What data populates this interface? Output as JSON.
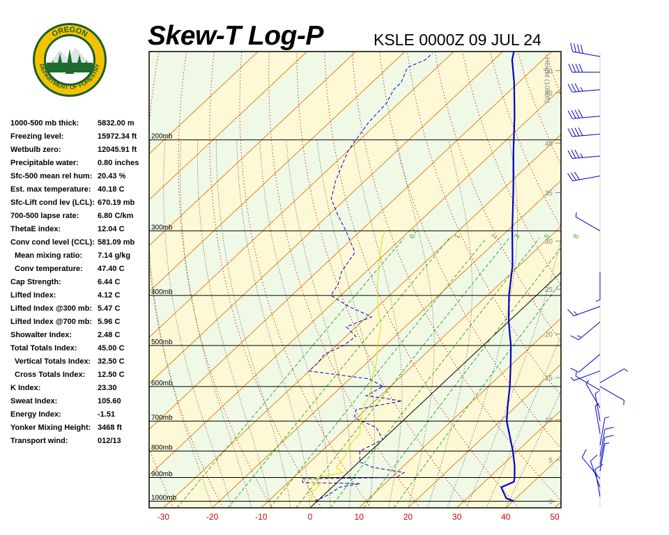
{
  "header": {
    "title": "Skew-T Log-P",
    "station_time": "KSLE 0000Z 09 JUL 24"
  },
  "logo": {
    "text_top": "OREGON",
    "text_bottom": "DEPARTMENT OF FORESTRY",
    "colors": {
      "ring": "#1a5e2a",
      "gold": "#f2c200",
      "tree": "#1d6b2f",
      "sky": "#ffffff"
    }
  },
  "indices": [
    {
      "label": "1000-500 mb thick:",
      "value": "5832.00 m"
    },
    {
      "label": "Freezing level:",
      "value": "15972.34 ft"
    },
    {
      "label": "Wetbulb zero:",
      "value": "12045.91 ft"
    },
    {
      "label": "Precipitable water:",
      "value": "0.80 inches"
    },
    {
      "label": "Sfc-500 mean rel hum:",
      "value": "20.43 %"
    },
    {
      "label": "Est. max temperature:",
      "value": "40.18 C"
    },
    {
      "label": "Sfc-Lift cond lev (LCL):",
      "value": "670.19 mb"
    },
    {
      "label": "700-500 lapse rate:",
      "value": "6.80 C/km"
    },
    {
      "label": "ThetaE index:",
      "value": "12.04 C"
    },
    {
      "label": "Conv cond level (CCL):",
      "value": "581.09 mb"
    },
    {
      "label": "Mean mixing ratio:",
      "value": "7.14 g/kg",
      "indent": true
    },
    {
      "label": "Conv temperature:",
      "value": "47.40 C",
      "indent": true
    },
    {
      "label": "Cap Strength:",
      "value": "6.44 C"
    },
    {
      "label": "Lifted Index:",
      "value": "4.12 C"
    },
    {
      "label": "Lifted Index @300 mb:",
      "value": "5.47 C"
    },
    {
      "label": "Lifted Index @700 mb:",
      "value": "5.96 C"
    },
    {
      "label": "Showalter Index:",
      "value": "2.48 C"
    },
    {
      "label": "Total Totals Index:",
      "value": "45.00 C"
    },
    {
      "label": "Vertical Totals Index:",
      "value": "32.50 C",
      "indent": true
    },
    {
      "label": "Cross Totals Index:",
      "value": "12.50 C",
      "indent": true
    },
    {
      "label": "K Index:",
      "value": "23.30"
    },
    {
      "label": "Sweat Index:",
      "value": "105.60"
    },
    {
      "label": "Energy Index:",
      "value": "-1.51"
    },
    {
      "label": "Yonker Mixing Height:",
      "value": "3468 ft"
    },
    {
      "label": "Transport wind:",
      "value": "012/13"
    }
  ],
  "chart_data": {
    "type": "line",
    "title": "Skew-T Log-P",
    "subtitle": "KSLE 0000Z 09 JUL 24",
    "x_axis": {
      "ticks": [
        "-30",
        "-20",
        "-10",
        "0",
        "10",
        "20",
        "30",
        "40",
        "50"
      ],
      "range": [
        -33,
        50
      ],
      "color": "#cc0000"
    },
    "pressure_levels": [
      {
        "p": 1000,
        "label": "1000mb"
      },
      {
        "p": 900,
        "label": "900mb"
      },
      {
        "p": 800,
        "label": "800mb"
      },
      {
        "p": 700,
        "label": "700mb"
      },
      {
        "p": 600,
        "label": "600mb"
      },
      {
        "p": 500,
        "label": "500mb"
      },
      {
        "p": 400,
        "label": "400mb"
      },
      {
        "p": 300,
        "label": "300mb"
      },
      {
        "p": 200,
        "label": "200mb"
      }
    ],
    "p_top": 135,
    "p_bottom": 1030,
    "height_axis": {
      "title": "Height (1000ft)",
      "ticks": [
        {
          "label": "0",
          "p": 1000
        },
        {
          "label": "5",
          "p": 832
        },
        {
          "label": "10",
          "p": 696
        },
        {
          "label": "15",
          "p": 577
        },
        {
          "label": "20",
          "p": 475
        },
        {
          "label": "25",
          "p": 389
        },
        {
          "label": "30",
          "p": 314
        },
        {
          "label": "35",
          "p": 253
        },
        {
          "label": "40",
          "p": 203
        },
        {
          "label": "45",
          "p": 162
        },
        {
          "label": "50",
          "p": 147
        }
      ]
    },
    "mixing_ratio_labels": [
      "0.4",
      "1",
      "2",
      "3",
      "5",
      "8"
    ],
    "series": [
      {
        "color": "#0000cc",
        "style": "solid",
        "points": [
          [
            1000,
            40.2
          ],
          [
            987,
            38.0
          ],
          [
            940,
            34.6
          ],
          [
            917,
            36.0
          ],
          [
            900,
            35.2
          ],
          [
            855,
            32.7
          ],
          [
            800,
            29.1
          ],
          [
            700,
            21.3
          ],
          [
            650,
            17.9
          ],
          [
            600,
            14.4
          ],
          [
            550,
            10.3
          ],
          [
            500,
            5.7
          ],
          [
            450,
            0.1
          ],
          [
            400,
            -5.6
          ],
          [
            350,
            -11.4
          ],
          [
            300,
            -19.0
          ],
          [
            250,
            -27.7
          ],
          [
            210,
            -36.2
          ],
          [
            180,
            -43.5
          ],
          [
            155,
            -50.9
          ],
          [
            140,
            -56.3
          ],
          [
            134,
            -58.0
          ]
        ]
      },
      {
        "color": "#0000cc",
        "style": "dashed",
        "points": [
          [
            1000,
            -0.5
          ],
          [
            970,
            1.0
          ],
          [
            940,
            1.5
          ],
          [
            925,
            5.0
          ],
          [
            920,
            -7.0
          ],
          [
            905,
            -8.0
          ],
          [
            900,
            11.0
          ],
          [
            880,
            11.5
          ],
          [
            860,
            4.0
          ],
          [
            840,
            0.2
          ],
          [
            800,
            -2.2
          ],
          [
            760,
            0.0
          ],
          [
            720,
            -4.0
          ],
          [
            690,
            -10.5
          ],
          [
            665,
            -12.0
          ],
          [
            640,
            -4.5
          ],
          [
            625,
            -13.0
          ],
          [
            600,
            -11.5
          ],
          [
            580,
            -16.0
          ],
          [
            560,
            -30.0
          ],
          [
            540,
            -30.0
          ],
          [
            520,
            -30.5
          ],
          [
            500,
            -28.5
          ],
          [
            480,
            -28.0
          ],
          [
            460,
            -32.0
          ],
          [
            440,
            -29.0
          ],
          [
            420,
            -36.0
          ],
          [
            400,
            -42.0
          ],
          [
            380,
            -43.0
          ],
          [
            360,
            -45.0
          ],
          [
            330,
            -46.5
          ],
          [
            300,
            -53.0
          ],
          [
            280,
            -58.0
          ],
          [
            260,
            -63.0
          ],
          [
            240,
            -66.0
          ],
          [
            210,
            -70.0
          ],
          [
            185,
            -72.0
          ],
          [
            170,
            -72.5
          ],
          [
            160,
            -74.0
          ],
          [
            155,
            -74.0
          ],
          [
            145,
            -76.0
          ],
          [
            140,
            -74.0
          ],
          [
            136,
            -74.0
          ]
        ]
      },
      {
        "color": "#e0e000",
        "style": "solid",
        "points": [
          [
            1000,
            -1.2
          ],
          [
            960,
            -3.0
          ],
          [
            930,
            -3.0
          ],
          [
            920,
            -5.0
          ],
          [
            905,
            -6.0
          ],
          [
            880,
            -1.0
          ],
          [
            860,
            -3.5
          ],
          [
            820,
            -4.0
          ],
          [
            780,
            -5.5
          ],
          [
            740,
            -6.0
          ],
          [
            700,
            -8.5
          ],
          [
            660,
            -11.0
          ],
          [
            620,
            -12.5
          ],
          [
            580,
            -15.5
          ],
          [
            540,
            -18.0
          ],
          [
            500,
            -21.5
          ],
          [
            460,
            -25.0
          ],
          [
            420,
            -30.0
          ],
          [
            380,
            -35.0
          ],
          [
            340,
            -40.0
          ],
          [
            310,
            -44.0
          ],
          [
            300,
            -45.0
          ]
        ]
      }
    ],
    "colors": {
      "plot_bg": "#f0f8e6",
      "isotherm_band": "#fdf9d6",
      "isobar": "#000000",
      "isotherm": "#e07800",
      "dry_adiabat": "#cc0000",
      "moist_adiabat": "#000000",
      "mixing_ratio": "#33aa33",
      "height_text": "#888888",
      "wind": "#0000cc"
    },
    "wind_barbs": [
      {
        "p": 980,
        "dir": 350,
        "speed": 10
      },
      {
        "p": 940,
        "dir": 340,
        "speed": 10
      },
      {
        "p": 905,
        "dir": 320,
        "speed": 10
      },
      {
        "p": 875,
        "dir": 10,
        "speed": 5
      },
      {
        "p": 850,
        "dir": 10,
        "speed": 10
      },
      {
        "p": 820,
        "dir": 10,
        "speed": 10
      },
      {
        "p": 780,
        "dir": 10,
        "speed": 5
      },
      {
        "p": 740,
        "dir": 350,
        "speed": 5
      },
      {
        "p": 700,
        "dir": 350,
        "speed": 5
      },
      {
        "p": 660,
        "dir": 330,
        "speed": 5
      },
      {
        "p": 610,
        "dir": 300,
        "speed": 5
      },
      {
        "p": 600,
        "dir": 120,
        "speed": 5
      },
      {
        "p": 590,
        "dir": 60,
        "speed": 5
      },
      {
        "p": 560,
        "dir": 250,
        "speed": 5
      },
      {
        "p": 520,
        "dir": 230,
        "speed": 10
      },
      {
        "p": 450,
        "dir": 230,
        "speed": 15
      },
      {
        "p": 420,
        "dir": 250,
        "speed": 15
      },
      {
        "p": 360,
        "dir": 180,
        "speed": 5
      },
      {
        "p": 300,
        "dir": 300,
        "speed": 5
      },
      {
        "p": 235,
        "dir": 260,
        "speed": 30
      },
      {
        "p": 215,
        "dir": 265,
        "speed": 35
      },
      {
        "p": 195,
        "dir": 265,
        "speed": 40
      },
      {
        "p": 180,
        "dir": 265,
        "speed": 40
      },
      {
        "p": 160,
        "dir": 265,
        "speed": 35
      },
      {
        "p": 148,
        "dir": 270,
        "speed": 40
      },
      {
        "p": 138,
        "dir": 280,
        "speed": 40
      }
    ]
  }
}
